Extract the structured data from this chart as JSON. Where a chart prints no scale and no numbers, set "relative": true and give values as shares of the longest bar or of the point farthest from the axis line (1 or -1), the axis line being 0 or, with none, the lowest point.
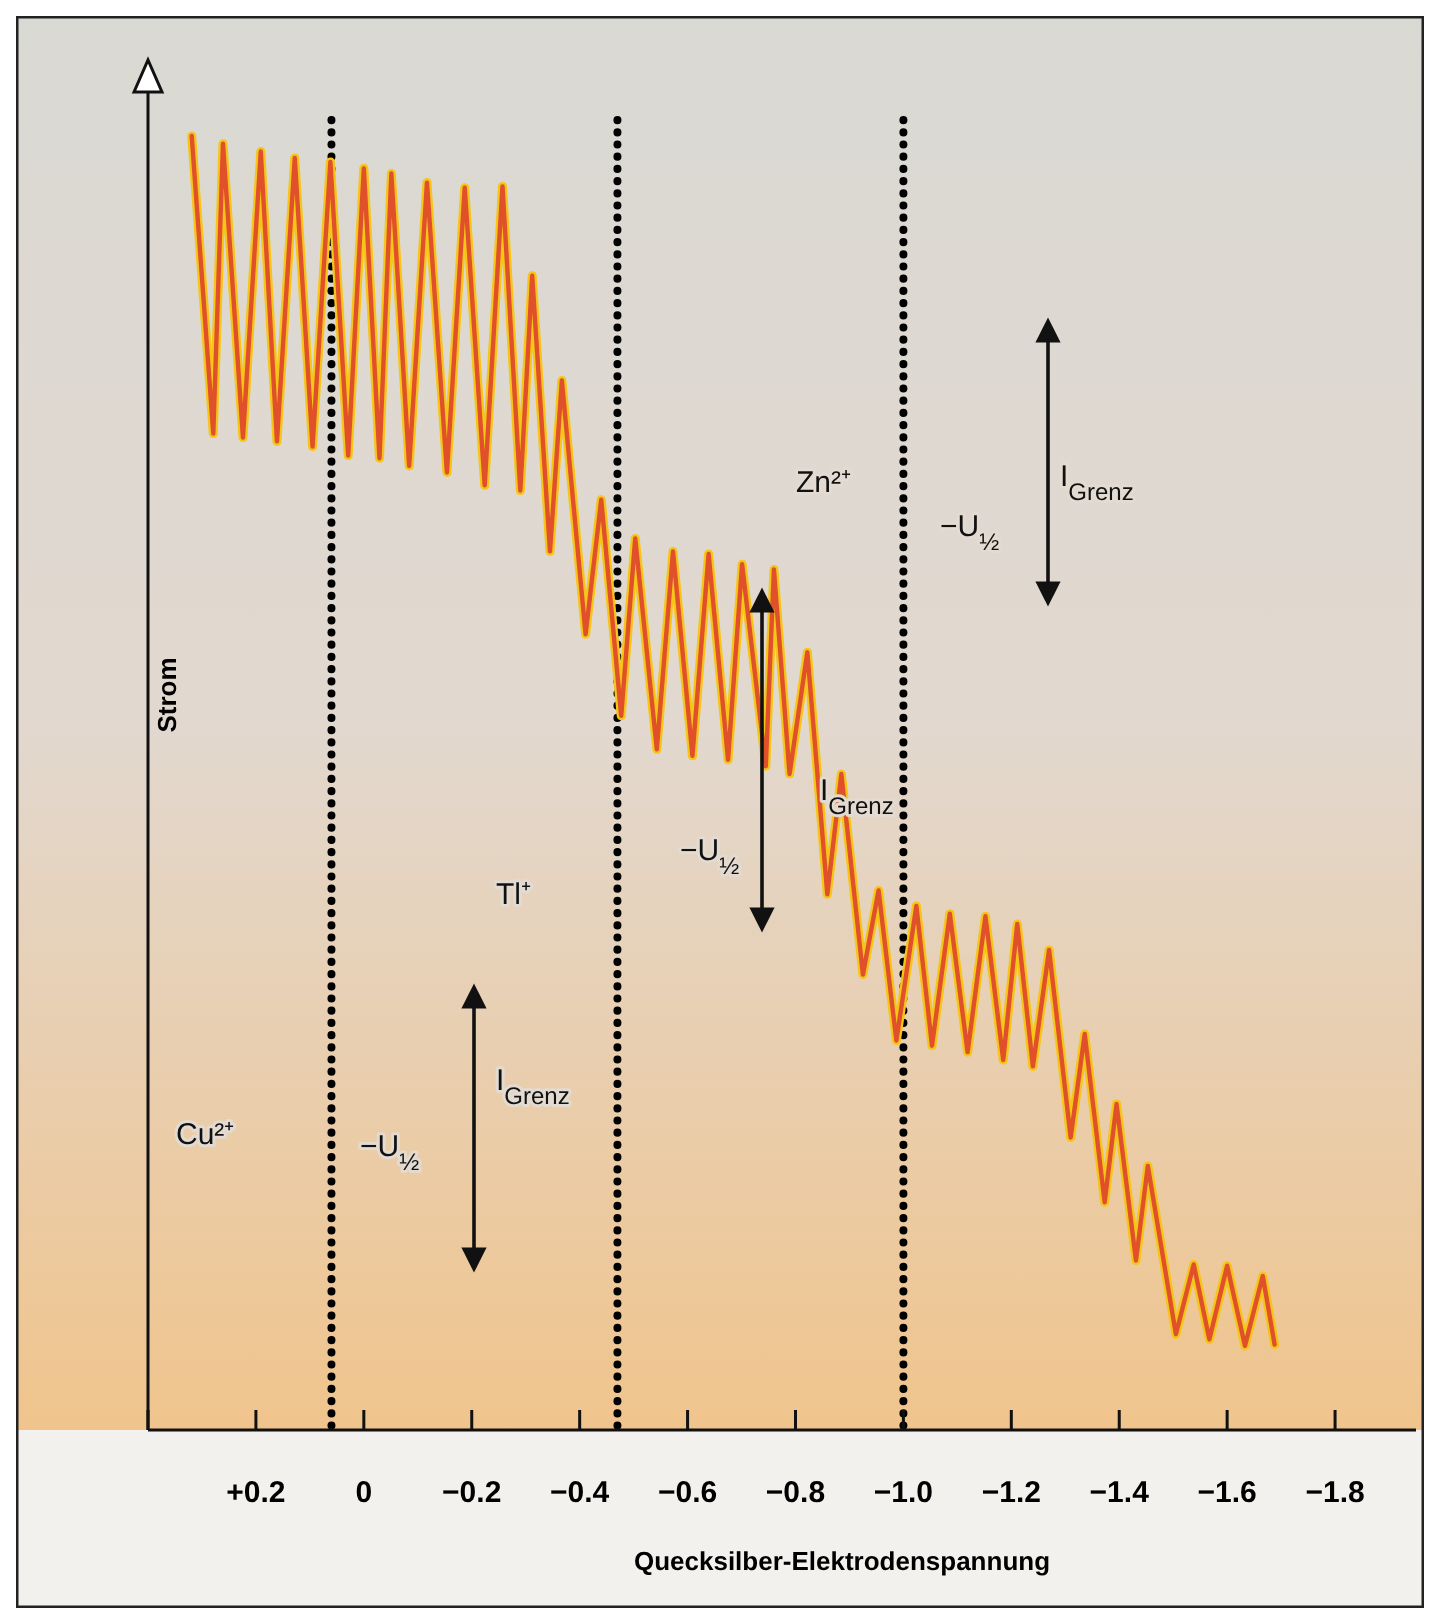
{
  "chart_data": {
    "type": "line",
    "relative": true,
    "xlabel": "Quecksilber-Elektrodenspannung",
    "ylabel": "Strom",
    "xlim": [
      0.4,
      -1.95
    ],
    "xticks": [
      {
        "value": 0.4,
        "label": null
      },
      {
        "value": 0.2,
        "label": "+0.2"
      },
      0,
      {
        "value": -0.2,
        "label": "−0.2"
      },
      {
        "value": -0.4,
        "label": "−0.4"
      },
      {
        "value": -0.6,
        "label": "−0.6"
      },
      {
        "value": -0.8,
        "label": "−0.8"
      },
      {
        "value": -1.0,
        "label": "−1.0"
      },
      {
        "value": -1.2,
        "label": "−1.2"
      },
      {
        "value": -1.4,
        "label": "−1.4"
      },
      {
        "value": -1.6,
        "label": "−1.6"
      },
      {
        "value": -1.8,
        "label": "−1.8"
      }
    ],
    "series": [
      {
        "color": "#e0502a",
        "x": [
          0.319,
          0.279,
          0.261,
          0.224,
          0.191,
          0.161,
          0.128,
          0.095,
          0.062,
          0.029,
          0.0,
          -0.029,
          -0.051,
          -0.084,
          -0.117,
          -0.154,
          -0.187,
          -0.224,
          -0.257,
          -0.29,
          -0.312,
          -0.345,
          -0.367,
          -0.411,
          -0.44,
          -0.477,
          -0.503,
          -0.543,
          -0.573,
          -0.609,
          -0.639,
          -0.675,
          -0.701,
          -0.745,
          -0.76,
          -0.789,
          -0.822,
          -0.859,
          -0.885,
          -0.925,
          -0.954,
          -0.987,
          -1.024,
          -1.053,
          -1.086,
          -1.119,
          -1.152,
          -1.185,
          -1.211,
          -1.24,
          -1.27,
          -1.31,
          -1.336,
          -1.373,
          -1.395,
          -1.431,
          -1.453,
          -1.505,
          -1.538,
          -1.567,
          -1.6,
          -1.633,
          -1.666,
          -1.688
        ],
        "values": [
          1.0,
          0.77,
          0.994,
          0.767,
          0.988,
          0.764,
          0.983,
          0.76,
          0.98,
          0.753,
          0.975,
          0.751,
          0.971,
          0.745,
          0.964,
          0.74,
          0.96,
          0.73,
          0.961,
          0.726,
          0.892,
          0.679,
          0.811,
          0.615,
          0.719,
          0.552,
          0.689,
          0.526,
          0.679,
          0.521,
          0.677,
          0.518,
          0.669,
          0.513,
          0.665,
          0.507,
          0.601,
          0.414,
          0.507,
          0.352,
          0.417,
          0.301,
          0.405,
          0.297,
          0.399,
          0.292,
          0.397,
          0.286,
          0.391,
          0.281,
          0.371,
          0.226,
          0.306,
          0.176,
          0.252,
          0.131,
          0.204,
          0.074,
          0.128,
          0.07,
          0.127,
          0.065,
          0.119,
          0.066
        ]
      }
    ],
    "ref_lines": [
      {
        "axis": "x",
        "value": 0.06,
        "color": "#000000",
        "line_style": "dotted"
      },
      {
        "axis": "x",
        "value": -0.47,
        "color": "#000000",
        "line_style": "dotted"
      },
      {
        "axis": "x",
        "value": -1.0,
        "color": "#000000",
        "line_style": "dotted"
      }
    ],
    "annotations": [
      "Cu²⁺",
      "−U$_{½}$",
      "I$_{Grenz}$",
      "Tl⁺",
      "−U$_{½}$",
      "I$_{Grenz}$",
      "Zn²⁺",
      "−U$_{½}$",
      "I$_{Grenz}$"
    ]
  }
}
